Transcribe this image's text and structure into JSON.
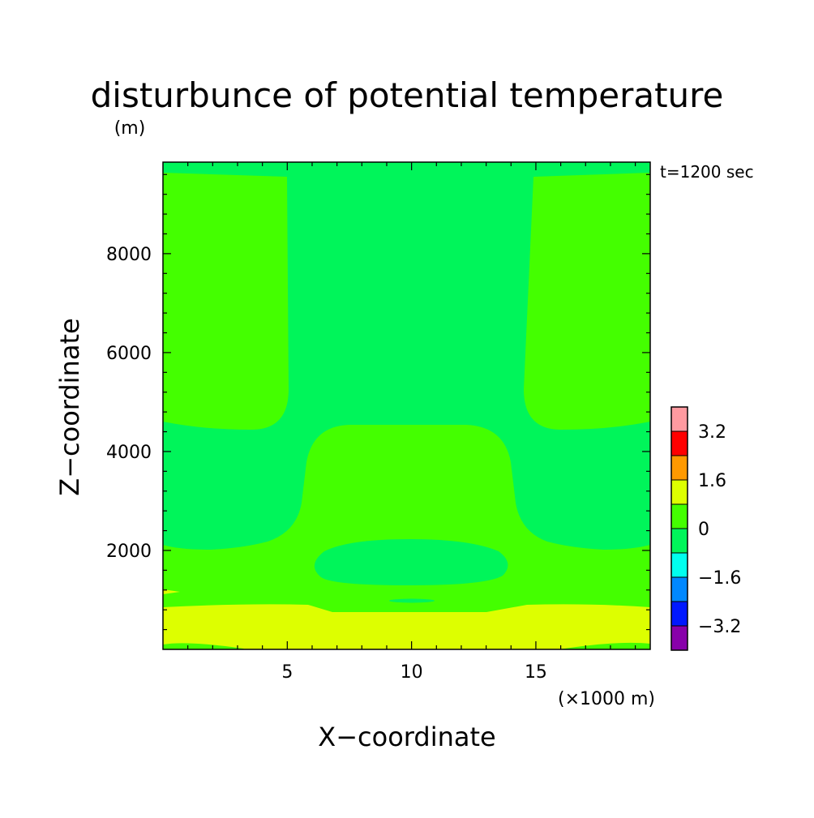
{
  "chart_data": {
    "type": "heatmap",
    "subtype": "filled-contour",
    "title": "disturbunce of potential temperature",
    "time_label": "t=1200 sec",
    "xlabel": "X−coordinate",
    "ylabel": "Z−coordinate",
    "ylabel_unit": "(m)",
    "xlabel_unit": "(×1000 m)",
    "xlim": [
      0,
      19.6
    ],
    "ylim": [
      0,
      9850
    ],
    "x_ticks": [
      5,
      10,
      15
    ],
    "x_tick_labels": [
      "5",
      "10",
      "15"
    ],
    "y_ticks": [
      2000,
      4000,
      6000,
      8000
    ],
    "y_tick_labels": [
      "2000",
      "4000",
      "6000",
      "8000"
    ],
    "grid": false,
    "colorbar": {
      "position": "right",
      "levels": [
        -4.0,
        -3.2,
        -2.4,
        -1.6,
        -0.8,
        0.0,
        0.8,
        1.6,
        2.4,
        3.2,
        4.0
      ],
      "colors": [
        "#8800aa",
        "#0018ff",
        "#0088ff",
        "#00ffee",
        "#00f55a",
        "#44ff00",
        "#ddff00",
        "#ff9900",
        "#ff0000",
        "#ff9aa0"
      ],
      "tick_values": [
        -3.2,
        -1.6,
        0.0,
        1.6,
        3.2
      ],
      "tick_labels": [
        "−3.2",
        "−1.6",
        "0",
        "1.6",
        "3.2"
      ]
    },
    "regions": [
      {
        "name": "positive-background",
        "range": [
          0,
          0.8
        ],
        "color": "#44ff00"
      },
      {
        "name": "central-column",
        "range": [
          -0.8,
          0
        ],
        "color": "#00f55a",
        "x_extent": [
          5.1,
          14.9
        ],
        "z_extent": [
          4600,
          9850
        ]
      },
      {
        "name": "mid-level-band",
        "range": [
          -0.8,
          0
        ],
        "color": "#00f55a",
        "z_extent": [
          2100,
          4700
        ]
      },
      {
        "name": "low-cell",
        "range": [
          -0.8,
          0
        ],
        "color": "#00f55a",
        "x_extent": [
          6.2,
          13.7
        ],
        "z_extent": [
          1350,
          2250
        ]
      },
      {
        "name": "surface-layer",
        "range": [
          0.8,
          1.6
        ],
        "color": "#ddff00",
        "z_extent": [
          0,
          920
        ]
      }
    ]
  }
}
